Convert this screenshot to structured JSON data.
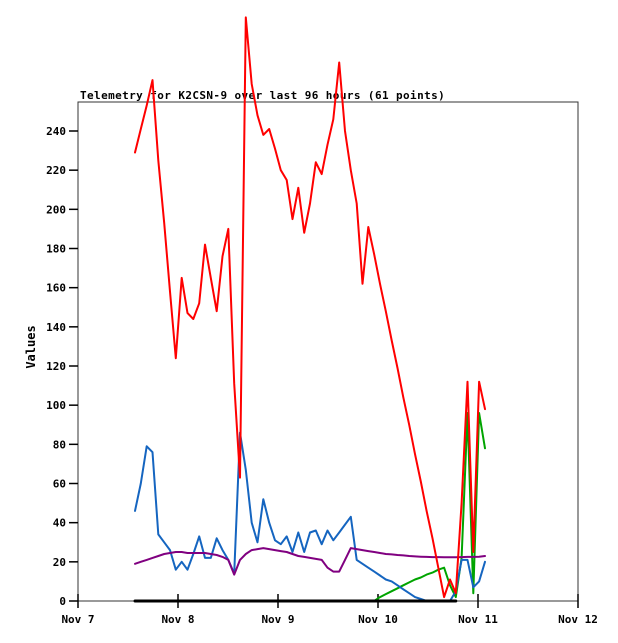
{
  "title": "Telemetry for K2CSN-9 over last 96 hours (61 points)",
  "chart_data": {
    "type": "line",
    "title": "Telemetry for K2CSN-9 over last 96 hours (61 points)",
    "xlabel": "",
    "ylabel": "Values",
    "grid": false,
    "legend": "none",
    "background_color": "#ffffff",
    "box_color": "#333333",
    "x_axis": {
      "tick_labels": [
        "Nov 7",
        "Nov 8",
        "Nov 9",
        "Nov 10",
        "Nov 11",
        "Nov 12"
      ],
      "span_days": 5
    },
    "y_axis": {
      "min": 0,
      "max": 240,
      "ticks": [
        0,
        20,
        40,
        60,
        80,
        100,
        120,
        140,
        160,
        180,
        200,
        220,
        240
      ]
    },
    "points_per_series": 61,
    "sample_offset_days": 0.57,
    "sample_step_days": 0.05833,
    "series": [
      {
        "name": "green",
        "color": "#00a400",
        "width": 2,
        "values": [
          null,
          null,
          null,
          null,
          null,
          null,
          null,
          null,
          null,
          null,
          null,
          null,
          null,
          null,
          null,
          null,
          null,
          null,
          null,
          null,
          null,
          null,
          null,
          null,
          null,
          null,
          null,
          null,
          null,
          null,
          null,
          null,
          null,
          null,
          null,
          null,
          null,
          null,
          null,
          null,
          null,
          0,
          2,
          3.5,
          5,
          6.5,
          8,
          9.5,
          11,
          12,
          13.5,
          14.5,
          16,
          17,
          8,
          2,
          22,
          96,
          4,
          96,
          78
        ]
      },
      {
        "name": "blue",
        "color": "#1565c0",
        "width": 2,
        "values": [
          46,
          60,
          79,
          76,
          34,
          30,
          26,
          16,
          20,
          16,
          24,
          33,
          22,
          22,
          32,
          26,
          21,
          14,
          86,
          67,
          40,
          30,
          52,
          40,
          31,
          29,
          33,
          25,
          35,
          25,
          35,
          36,
          29,
          36,
          31,
          35,
          39,
          43,
          21,
          19,
          17,
          15,
          13,
          11,
          10,
          8,
          6,
          4,
          2,
          1,
          0,
          0,
          0,
          0,
          0,
          5,
          21,
          21,
          7,
          10,
          20
        ]
      },
      {
        "name": "purple",
        "color": "#800080",
        "width": 2,
        "values": [
          19,
          20,
          21,
          22,
          23,
          24,
          24.5,
          25,
          25,
          24.5,
          24.5,
          24.5,
          24.5,
          24,
          23.5,
          22.5,
          21,
          13.5,
          21,
          24,
          26,
          26.5,
          27,
          26.5,
          26,
          25.5,
          25,
          24,
          23,
          22.5,
          22,
          21.5,
          21,
          17,
          15,
          15,
          21,
          27,
          26.5,
          26,
          25.5,
          25,
          24.5,
          24,
          23.8,
          23.5,
          23.3,
          23,
          22.8,
          22.6,
          22.5,
          22.4,
          22.4,
          22.3,
          22.3,
          22.3,
          22.4,
          22.5,
          22.5,
          22.6,
          23
        ]
      },
      {
        "name": "red",
        "color": "#ff0000",
        "width": 2,
        "values": [
          229,
          241,
          253,
          266,
          225,
          193,
          158,
          124,
          165,
          147,
          144,
          152,
          182,
          165,
          148,
          176,
          190,
          111,
          63,
          298,
          264,
          248,
          238,
          241,
          231,
          220,
          215,
          195,
          211,
          188,
          203,
          224,
          218,
          233,
          246,
          275,
          240,
          220,
          203,
          162,
          191,
          177,
          162,
          148,
          133,
          119,
          104,
          90,
          75,
          61,
          46,
          32,
          17,
          2,
          11,
          4,
          50,
          112,
          25,
          112,
          98
        ]
      },
      {
        "name": "black",
        "color": "#000000",
        "width": 3,
        "values": [
          0,
          0,
          0,
          0,
          0,
          0,
          0,
          0,
          0,
          0,
          0,
          0,
          0,
          0,
          0,
          0,
          0,
          0,
          0,
          0,
          0,
          0,
          0,
          0,
          0,
          0,
          0,
          0,
          0,
          0,
          0,
          0,
          0,
          0,
          0,
          0,
          0,
          0,
          0,
          0,
          0,
          0,
          0,
          0,
          0,
          0,
          0,
          0,
          0,
          0,
          0,
          0,
          0,
          0,
          0,
          0,
          null,
          null,
          null,
          null,
          null
        ]
      }
    ]
  }
}
